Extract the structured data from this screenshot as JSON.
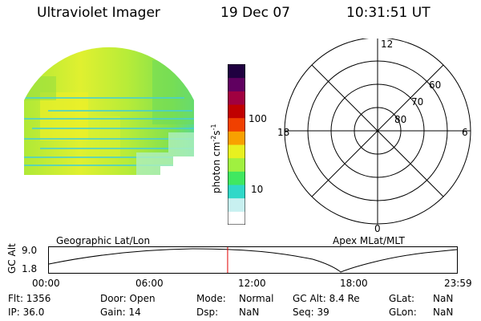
{
  "header": {
    "instrument": "Ultraviolet Imager",
    "date": "19 Dec 07",
    "time": "10:31:51 UT"
  },
  "colorbar": {
    "unit_label": "photon cm",
    "unit_sup1": "-2",
    "unit_mid": "s",
    "unit_sup2": "-1",
    "tick_100": "100",
    "tick_10": "10",
    "colors": [
      "#ffffff",
      "#c8f0f0",
      "#30d8c8",
      "#40e860",
      "#a0f040",
      "#e8f020",
      "#f8a000",
      "#f04000",
      "#c00000",
      "#a00040",
      "#600060",
      "#200040"
    ]
  },
  "polar": {
    "label_12": "12",
    "label_18": "18",
    "label_6": "6",
    "label_0": "0",
    "label_60": "60",
    "label_70": "70",
    "label_80": "80"
  },
  "timeline": {
    "left_caption": "Geographic Lat/Lon",
    "right_caption": "Apex MLat/MLT",
    "axis_label": "GC Alt",
    "y_top": "9.0",
    "y_bottom": "1.8",
    "x_ticks": [
      "00:00",
      "06:00",
      "12:00",
      "18:00",
      "23:59"
    ],
    "current_time_fraction": 0.438
  },
  "footer": {
    "flt": "Flt: 1356",
    "ip": "IP: 36.0",
    "door": "Door: Open",
    "gain": "Gain: 14",
    "mode_label": "Mode:",
    "mode_value": "Normal",
    "dsp_label": "Dsp:",
    "dsp_value": "NaN",
    "gcalt": "GC Alt: 8.4 Re",
    "seq": "Seq: 39",
    "glat_label": "GLat:",
    "glat_value": "NaN",
    "glon_label": "GLon:",
    "glon_value": "NaN"
  }
}
